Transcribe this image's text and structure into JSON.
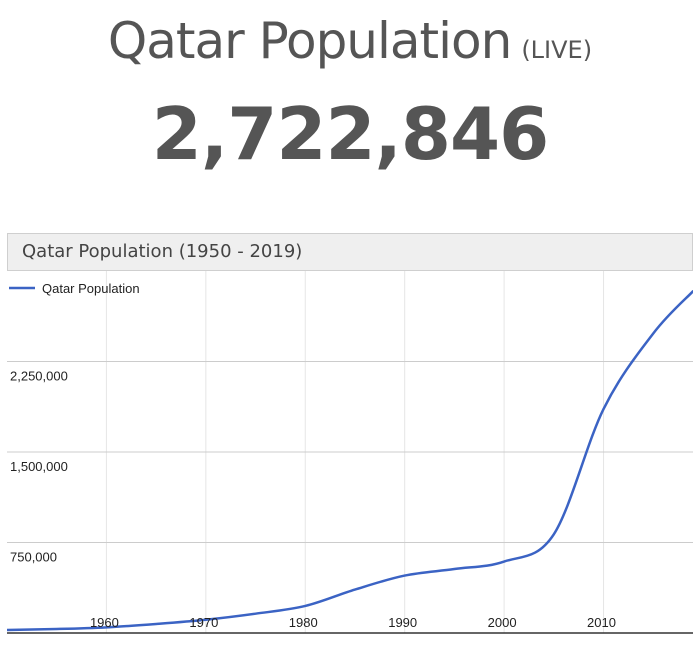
{
  "header": {
    "title": "Qatar Population",
    "live_label": "(LIVE)",
    "counter": "2,722,846"
  },
  "chart_data": {
    "type": "line",
    "title": "Qatar Population (1950 - 2019)",
    "xlabel": "",
    "ylabel": "",
    "legend_position": "top-left",
    "grid": true,
    "line_color": "#3b63c4",
    "xlim": [
      1950,
      2019
    ],
    "ylim": [
      0,
      3000000
    ],
    "x_ticks": [
      1960,
      1970,
      1980,
      1990,
      2000,
      2010
    ],
    "x_tick_labels": [
      "1960",
      "1970",
      "1980",
      "1990",
      "2000",
      "2010"
    ],
    "y_ticks": [
      750000,
      1500000,
      2250000
    ],
    "y_tick_labels": [
      "750,000",
      "1,500,000",
      "2,250,000"
    ],
    "series": [
      {
        "name": "Qatar Population",
        "x": [
          1950,
          1955,
          1960,
          1965,
          1970,
          1975,
          1980,
          1985,
          1990,
          1995,
          2000,
          2005,
          2010,
          2015,
          2019
        ],
        "values": [
          25000,
          33000,
          47000,
          75000,
          110000,
          160000,
          224000,
          360000,
          476000,
          530000,
          592000,
          818000,
          1856000,
          2482000,
          2832000
        ]
      }
    ]
  }
}
